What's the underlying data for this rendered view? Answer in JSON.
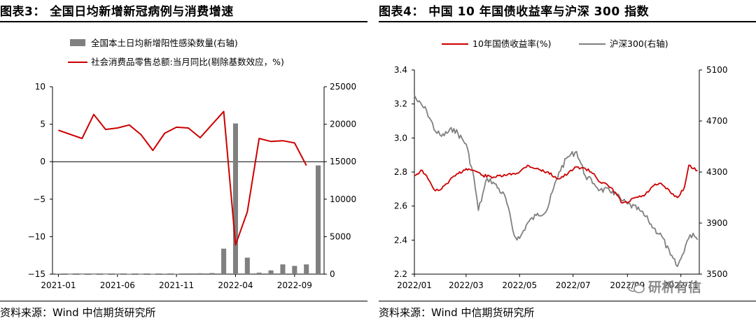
{
  "left": {
    "title": "图表3： 全国日均新增新冠病例与消费增速",
    "source": "资料来源：Wind 中信期货研究所",
    "colors": {
      "bar": "#808080",
      "line": "#cc0000"
    }
  },
  "right": {
    "title": "图表4： 中国 10 年国债收益率与沪深 300 指数",
    "source": "资料来源：Wind 中信期货研究所",
    "colors": {
      "bond": "#cc0000",
      "index": "#808080"
    }
  },
  "watermark": "研析有信",
  "chart_data": [
    {
      "type": "bar+line",
      "title": "全国日均新增新冠病例与消费增速",
      "legend_position": "top",
      "x_ticks": [
        "2021-01",
        "2021-06",
        "2021-11",
        "2022-04",
        "2022-09"
      ],
      "x_tick_index": [
        0,
        5,
        10,
        15,
        20
      ],
      "categories": [
        "2021-01",
        "2021-02",
        "2021-03",
        "2021-04",
        "2021-05",
        "2021-06",
        "2021-07",
        "2021-08",
        "2021-09",
        "2021-10",
        "2021-11",
        "2021-12",
        "2022-01",
        "2022-02",
        "2022-03",
        "2022-04",
        "2022-05",
        "2022-06",
        "2022-07",
        "2022-08",
        "2022-09",
        "2022-10",
        "2022-11"
      ],
      "left_axis": {
        "ylim": [
          -15,
          10
        ],
        "ticks": [
          10,
          5,
          0,
          -5,
          -10,
          -15
        ]
      },
      "right_axis": {
        "ylim": [
          0,
          25000
        ],
        "ticks": [
          25000,
          20000,
          15000,
          10000,
          5000,
          0
        ]
      },
      "series": [
        {
          "name": "全国本土日均新增阳性感染数量(右轴)",
          "type": "bar",
          "axis": "right",
          "values": [
            60,
            20,
            5,
            5,
            10,
            20,
            40,
            30,
            40,
            60,
            40,
            100,
            120,
            150,
            3400,
            20100,
            2200,
            200,
            500,
            1300,
            1100,
            1300,
            14500
          ]
        },
        {
          "name": "社会消费品零售总额:当月同比(剔除基数效应，%)",
          "type": "line",
          "axis": "left",
          "values": [
            4.2,
            null,
            3.1,
            6.3,
            4.3,
            4.5,
            4.9,
            3.6,
            1.5,
            3.8,
            4.6,
            4.5,
            3.2,
            null,
            6.7,
            -11.1,
            -6.7,
            3.1,
            2.7,
            2.8,
            2.5,
            -0.5,
            null
          ]
        }
      ]
    },
    {
      "type": "line",
      "title": "中国 10 年国债收益率与沪深 300 指数",
      "legend_position": "top",
      "x_ticks": [
        "2022/01",
        "2022/03",
        "2022/05",
        "2022/07",
        "2022/09",
        "2022/11"
      ],
      "left_axis": {
        "ylim": [
          2.2,
          3.4
        ],
        "ticks": [
          3.4,
          3.2,
          3.0,
          2.8,
          2.6,
          2.4,
          2.2
        ]
      },
      "right_axis": {
        "ylim": [
          3500,
          5100
        ],
        "ticks": [
          5100,
          4700,
          4300,
          3900,
          3500
        ]
      },
      "series": [
        {
          "name": "10年国债收益率(%)",
          "axis": "left",
          "points": [
            [
              "2022/01/01",
              2.78
            ],
            [
              "2022/01/10",
              2.81
            ],
            [
              "2022/01/20",
              2.73
            ],
            [
              "2022/01/25",
              2.69
            ],
            [
              "2022/02/01",
              2.7
            ],
            [
              "2022/02/10",
              2.75
            ],
            [
              "2022/02/20",
              2.79
            ],
            [
              "2022/03/01",
              2.82
            ],
            [
              "2022/03/10",
              2.81
            ],
            [
              "2022/03/20",
              2.78
            ],
            [
              "2022/04/01",
              2.77
            ],
            [
              "2022/04/15",
              2.78
            ],
            [
              "2022/05/01",
              2.8
            ],
            [
              "2022/05/10",
              2.84
            ],
            [
              "2022/05/20",
              2.82
            ],
            [
              "2022/06/01",
              2.8
            ],
            [
              "2022/06/15",
              2.76
            ],
            [
              "2022/06/25",
              2.79
            ],
            [
              "2022/07/05",
              2.83
            ],
            [
              "2022/07/15",
              2.82
            ],
            [
              "2022/07/25",
              2.79
            ],
            [
              "2022/08/01",
              2.74
            ],
            [
              "2022/08/10",
              2.72
            ],
            [
              "2022/08/20",
              2.67
            ],
            [
              "2022/08/25",
              2.62
            ],
            [
              "2022/09/01",
              2.62
            ],
            [
              "2022/09/10",
              2.65
            ],
            [
              "2022/09/20",
              2.66
            ],
            [
              "2022/10/01",
              2.72
            ],
            [
              "2022/10/10",
              2.73
            ],
            [
              "2022/10/20",
              2.68
            ],
            [
              "2022/10/28",
              2.65
            ],
            [
              "2022/11/05",
              2.71
            ],
            [
              "2022/11/10",
              2.84
            ],
            [
              "2022/11/15",
              2.82
            ],
            [
              "2022/11/20",
              2.81
            ]
          ]
        },
        {
          "name": "沪深300(右轴)",
          "axis": "right",
          "points": [
            [
              "2022/01/01",
              4900
            ],
            [
              "2022/01/05",
              4850
            ],
            [
              "2022/01/15",
              4780
            ],
            [
              "2022/01/25",
              4620
            ],
            [
              "2022/02/01",
              4580
            ],
            [
              "2022/02/15",
              4640
            ],
            [
              "2022/03/01",
              4520
            ],
            [
              "2022/03/10",
              4250
            ],
            [
              "2022/03/15",
              4000
            ],
            [
              "2022/03/25",
              4250
            ],
            [
              "2022/04/01",
              4220
            ],
            [
              "2022/04/15",
              4100
            ],
            [
              "2022/04/25",
              3800
            ],
            [
              "2022/05/01",
              3780
            ],
            [
              "2022/05/10",
              3900
            ],
            [
              "2022/05/20",
              3960
            ],
            [
              "2022/06/01",
              4000
            ],
            [
              "2022/06/15",
              4300
            ],
            [
              "2022/06/25",
              4420
            ],
            [
              "2022/07/05",
              4460
            ],
            [
              "2022/07/15",
              4270
            ],
            [
              "2022/07/25",
              4210
            ],
            [
              "2022/08/01",
              4160
            ],
            [
              "2022/08/15",
              4150
            ],
            [
              "2022/08/25",
              4080
            ],
            [
              "2022/09/01",
              4050
            ],
            [
              "2022/09/15",
              4000
            ],
            [
              "2022/09/25",
              3920
            ],
            [
              "2022/10/01",
              3860
            ],
            [
              "2022/10/10",
              3800
            ],
            [
              "2022/10/20",
              3650
            ],
            [
              "2022/10/28",
              3560
            ],
            [
              "2022/11/01",
              3620
            ],
            [
              "2022/11/08",
              3760
            ],
            [
              "2022/11/15",
              3820
            ],
            [
              "2022/11/20",
              3770
            ]
          ]
        }
      ]
    }
  ]
}
